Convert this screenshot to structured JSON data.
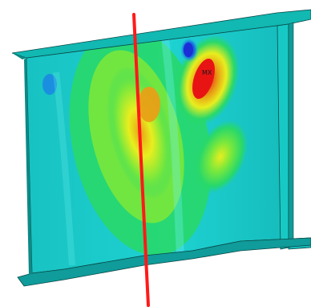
{
  "viewport": {
    "description_free": true,
    "max_marker_label": "MX",
    "colors": {
      "background": "#ffffff",
      "shell_base": "#15c8c0",
      "flange": "#0f9c9a",
      "blue": "#1a4fd6",
      "cyan": "#20d8d8",
      "green": "#28d86a",
      "lightgreen": "#7ae83c",
      "yellow": "#e8ee1e",
      "orange": "#e8a016",
      "red": "#e81414",
      "dark_red": "#b80f0f",
      "cut_line": "#ff1a1a",
      "edge": "#0a4a48"
    }
  }
}
